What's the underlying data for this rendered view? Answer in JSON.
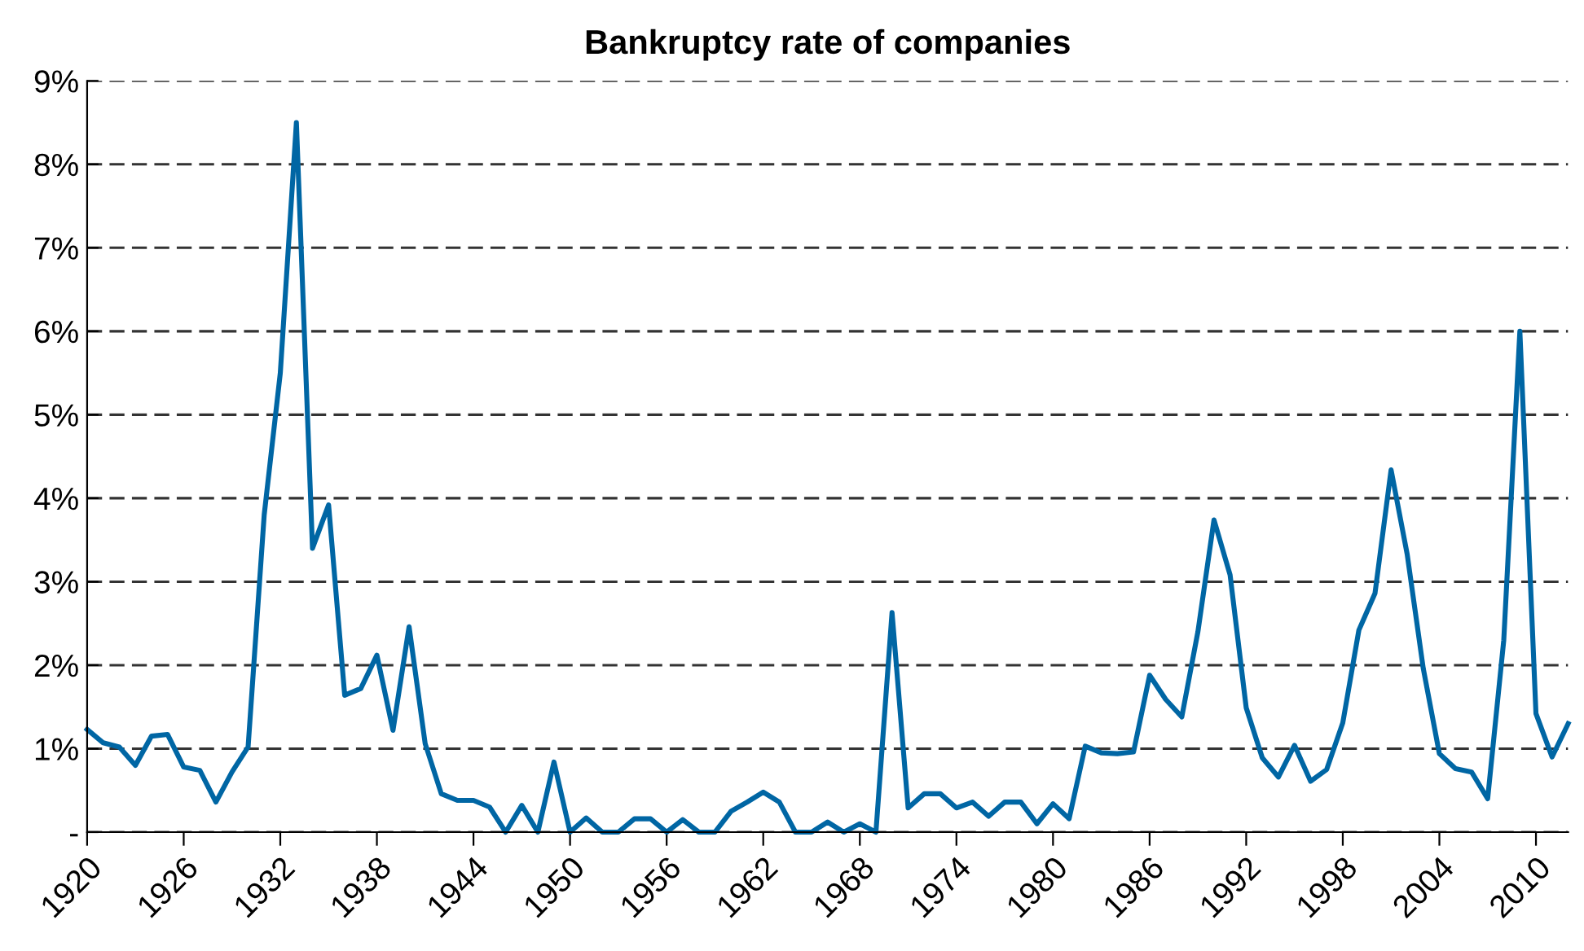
{
  "chart_data": {
    "type": "line",
    "title": "Bankruptcy rate of companies",
    "x": [
      1920,
      1921,
      1922,
      1923,
      1924,
      1925,
      1926,
      1927,
      1928,
      1929,
      1930,
      1931,
      1932,
      1933,
      1934,
      1935,
      1936,
      1937,
      1938,
      1939,
      1940,
      1941,
      1942,
      1943,
      1944,
      1945,
      1946,
      1947,
      1948,
      1949,
      1950,
      1951,
      1952,
      1953,
      1954,
      1955,
      1956,
      1957,
      1958,
      1959,
      1960,
      1961,
      1962,
      1963,
      1964,
      1965,
      1966,
      1967,
      1968,
      1969,
      1970,
      1971,
      1972,
      1973,
      1974,
      1975,
      1976,
      1977,
      1978,
      1979,
      1980,
      1981,
      1982,
      1983,
      1984,
      1985,
      1986,
      1987,
      1988,
      1989,
      1990,
      1991,
      1992,
      1993,
      1994,
      1995,
      1996,
      1997,
      1998,
      1999,
      2000,
      2001,
      2002,
      2003,
      2004,
      2005,
      2006,
      2007,
      2008,
      2009,
      2010,
      2011,
      2012
    ],
    "series": [
      {
        "color": "#0066a4",
        "values": [
          1.23,
          1.07,
          1.02,
          0.8,
          1.15,
          1.17,
          0.78,
          0.74,
          0.36,
          0.72,
          1.02,
          3.8,
          5.5,
          8.5,
          3.4,
          3.92,
          1.64,
          1.72,
          2.12,
          1.22,
          2.46,
          1.06,
          0.46,
          0.38,
          0.38,
          0.3,
          0,
          0.32,
          0,
          0.84,
          0,
          0.17,
          0,
          0,
          0.16,
          0.16,
          0,
          0.15,
          0,
          0,
          0.25,
          0.36,
          0.48,
          0.36,
          0,
          0,
          0.12,
          0,
          0.1,
          0,
          2.63,
          0.29,
          0.46,
          0.46,
          0.29,
          0.36,
          0.19,
          0.36,
          0.36,
          0.1,
          0.34,
          0.16,
          1.03,
          0.95,
          0.94,
          0.96,
          1.88,
          1.59,
          1.38,
          2.4,
          3.74,
          3.08,
          1.49,
          0.89,
          0.66,
          1.04,
          0.61,
          0.75,
          1.31,
          2.42,
          2.86,
          4.34,
          3.33,
          1.96,
          0.94,
          0.76,
          0.72,
          0.4,
          2.3,
          6.0,
          1.42,
          0.9,
          1.3
        ]
      }
    ],
    "xlim": [
      1920,
      2012
    ],
    "xticks": [
      1920,
      1926,
      1932,
      1938,
      1944,
      1950,
      1956,
      1962,
      1968,
      1974,
      1980,
      1986,
      1992,
      1998,
      2004,
      2010
    ],
    "ylim": [
      0,
      9
    ],
    "yticks": [
      {
        "value": 0,
        "label": "-"
      },
      {
        "value": 1,
        "label": "1%"
      },
      {
        "value": 2,
        "label": "2%"
      },
      {
        "value": 3,
        "label": "3%"
      },
      {
        "value": 4,
        "label": "4%"
      },
      {
        "value": 5,
        "label": "5%"
      },
      {
        "value": 6,
        "label": "6%"
      },
      {
        "value": 7,
        "label": "7%"
      },
      {
        "value": 8,
        "label": "8%"
      },
      {
        "value": 9,
        "label": "9%"
      }
    ],
    "grid": "y",
    "line_style": "solid",
    "marker": "none"
  }
}
